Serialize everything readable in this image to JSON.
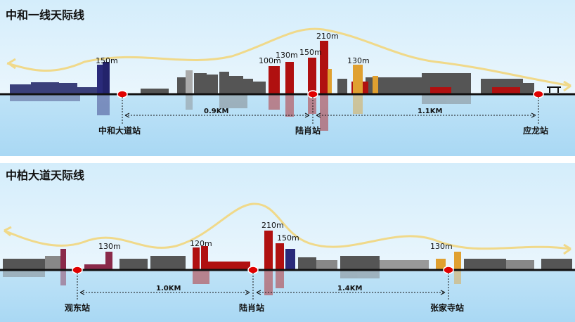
{
  "panels": [
    {
      "title": "中和一线天际线",
      "height_labels": [
        "150m",
        "100m",
        "130m",
        "150m",
        "210m",
        "130m"
      ],
      "stations": [
        "中和大道站",
        "陆肖站",
        "应龙站"
      ],
      "distances": [
        "0.9KM",
        "1.1KM"
      ]
    },
    {
      "title": "中柏大道天际线",
      "height_labels": [
        "130m",
        "120m",
        "210m",
        "150m",
        "130m"
      ],
      "stations": [
        "观东站",
        "陆肖站",
        "张家寺站"
      ],
      "distances": [
        "1.0KM",
        "1.4KM"
      ]
    }
  ],
  "colors": {
    "ridge": "#f0d98a",
    "ground_line": "#111111",
    "station_marker": "#e00000",
    "highrise_red": "#b01010",
    "highrise_blue": "#2a2a7a",
    "highrise_orange": "#e0a030",
    "buildings_gray": "#555555"
  }
}
